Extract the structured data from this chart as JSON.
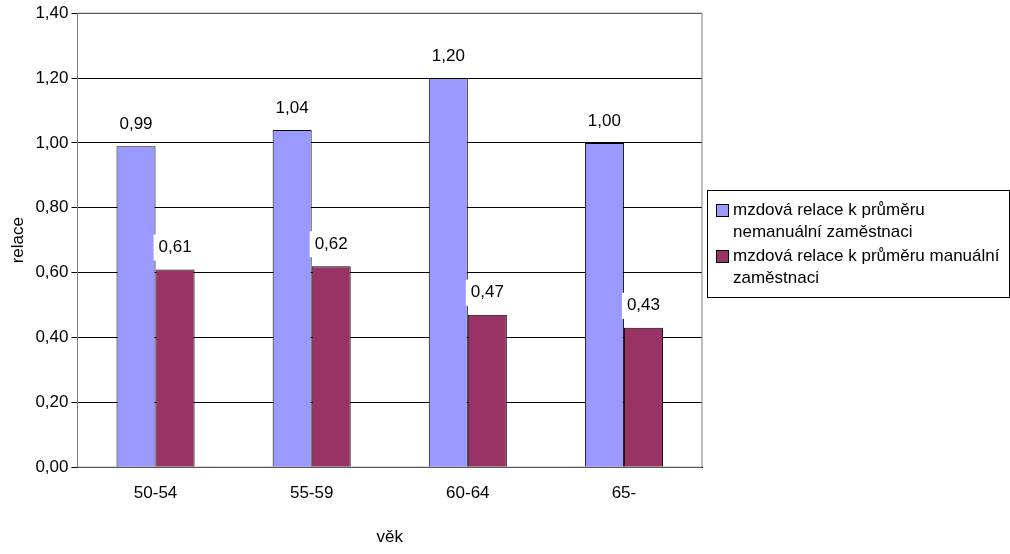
{
  "chart_data": {
    "type": "bar",
    "xlabel": "věk",
    "ylabel": "relace",
    "categories": [
      "50-54",
      "55-59",
      "60-64",
      "65-"
    ],
    "series": [
      {
        "name": "mzdová relace k průměru nemanuální zaměstnaci",
        "color": "#9999ff",
        "values": [
          0.99,
          1.04,
          1.2,
          1.0
        ],
        "value_labels": [
          "0,99",
          "1,04",
          "1,20",
          "1,00"
        ]
      },
      {
        "name": "mzdová relace k průměru manuální zaměstnaci",
        "color": "#993366",
        "values": [
          0.61,
          0.62,
          0.47,
          0.43
        ],
        "value_labels": [
          "0,61",
          "0,62",
          "0,47",
          "0,43"
        ]
      }
    ],
    "ylim": [
      0,
      1.4
    ],
    "yticks": [
      {
        "value": 0,
        "label": "0,00"
      },
      {
        "value": 0.2,
        "label": "0,20"
      },
      {
        "value": 0.4,
        "label": "0,40"
      },
      {
        "value": 0.6,
        "label": "0,60"
      },
      {
        "value": 0.8,
        "label": "0,80"
      },
      {
        "value": 1,
        "label": "1,00"
      },
      {
        "value": 1.2,
        "label": "1,20"
      },
      {
        "value": 1.4,
        "label": "1,40"
      }
    ],
    "grid": "y",
    "legend": "right"
  }
}
